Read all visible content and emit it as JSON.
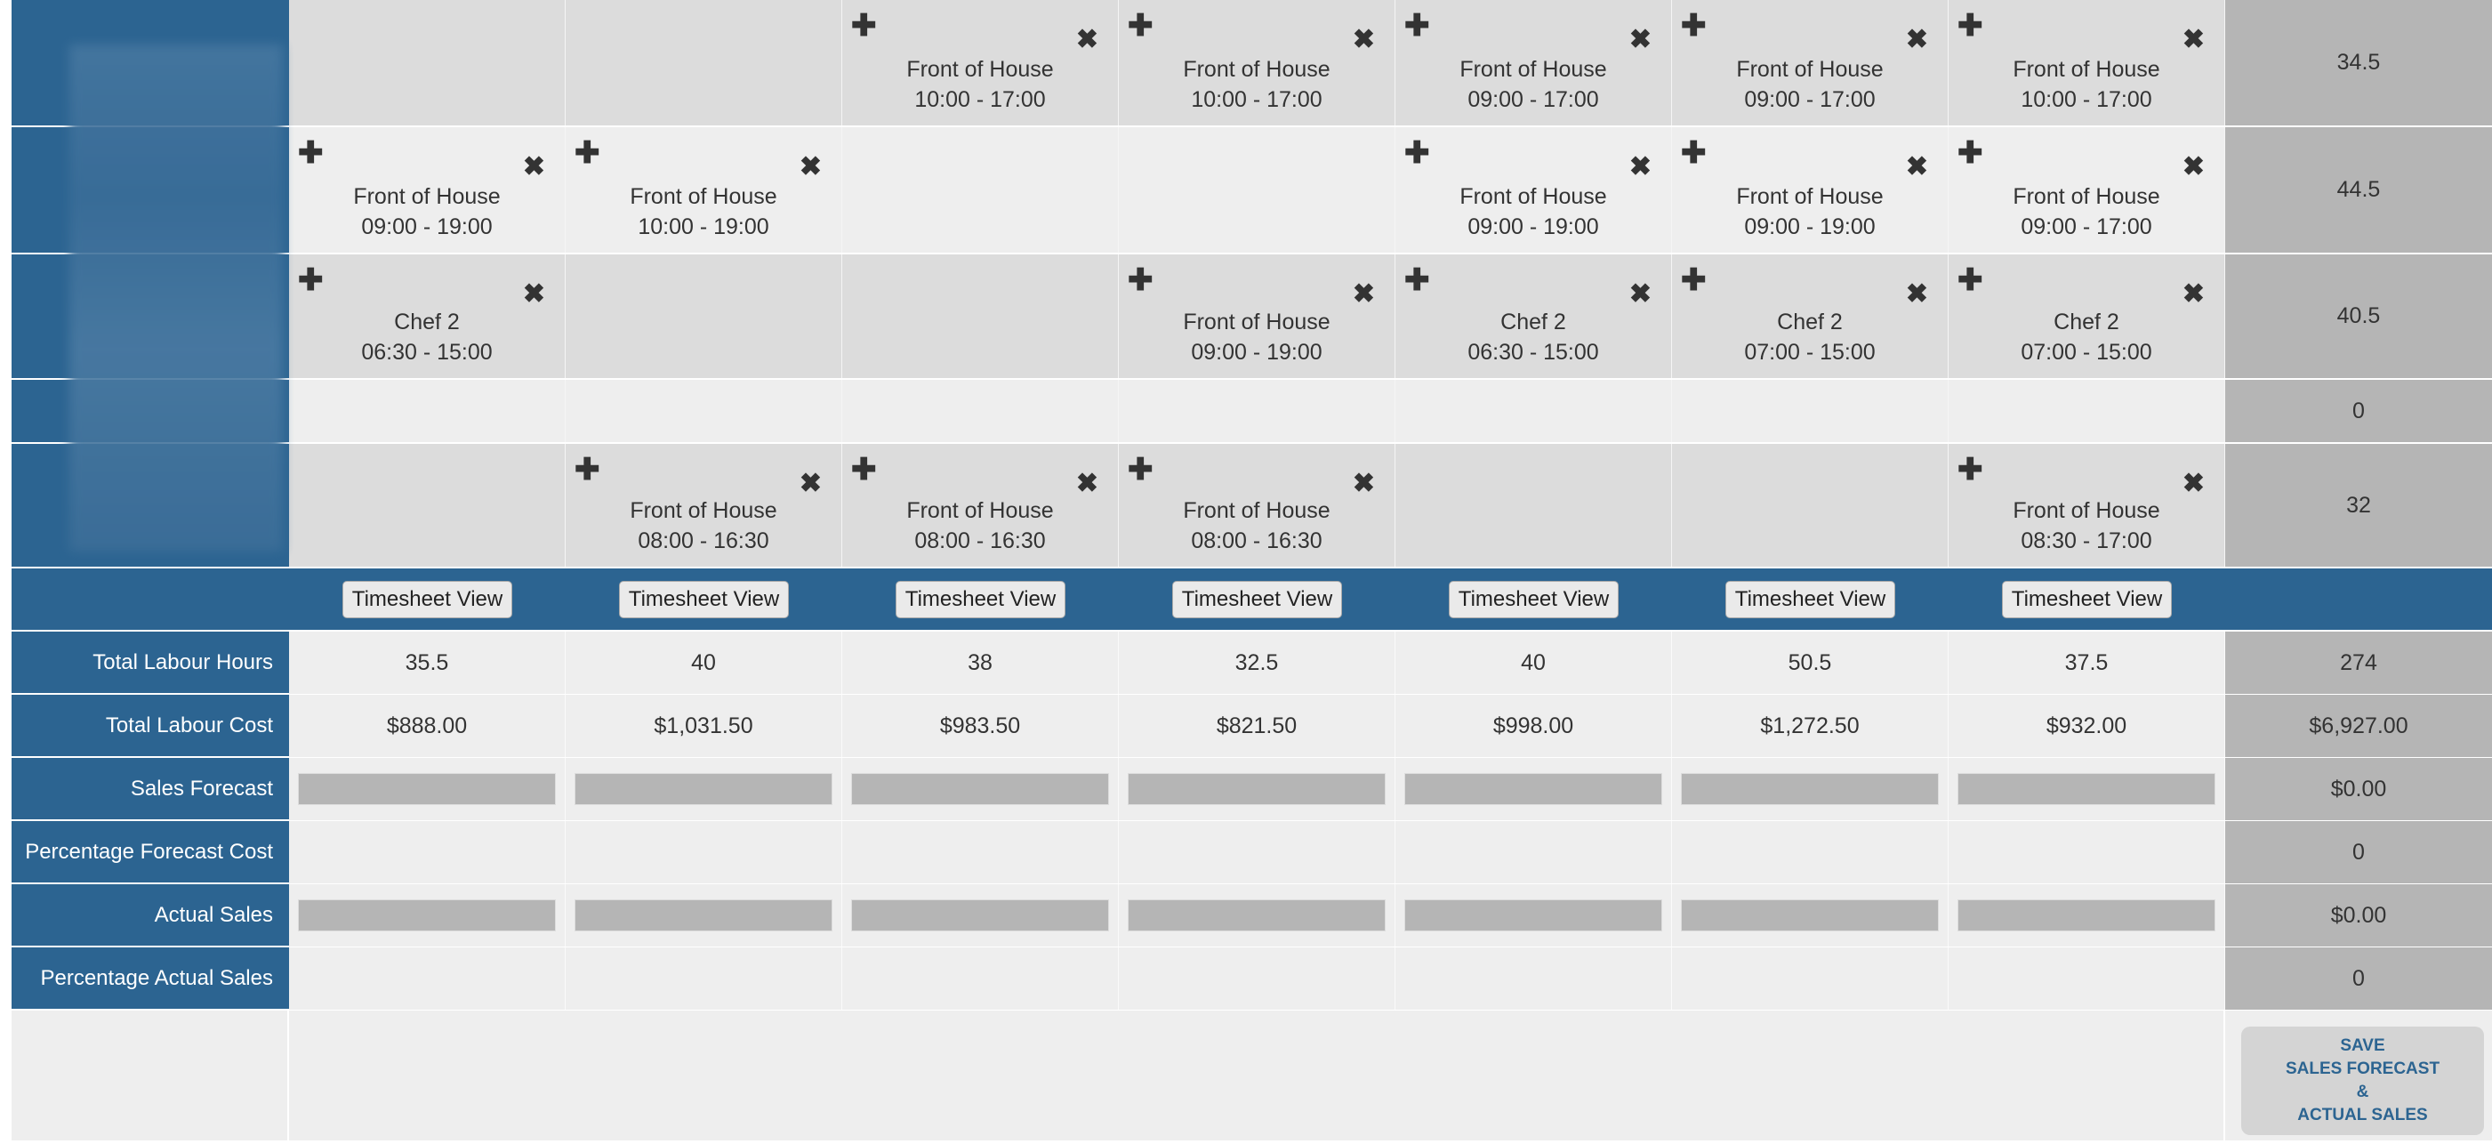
{
  "colors": {
    "primary": "#2c6491",
    "total_column": "#b5b5b5",
    "row_dark": "#dcdcdc",
    "row_light": "#eeeeee"
  },
  "icons": {
    "add": "plus-icon",
    "remove": "close-icon"
  },
  "staff_rows": [
    {
      "shifts": [
        null,
        null,
        {
          "role": "Front of House",
          "time": "10:00 - 17:00"
        },
        {
          "role": "Front of House",
          "time": "10:00 - 17:00"
        },
        {
          "role": "Front of House",
          "time": "09:00 - 17:00"
        },
        {
          "role": "Front of House",
          "time": "09:00 - 17:00"
        },
        {
          "role": "Front of House",
          "time": "10:00 - 17:00"
        }
      ],
      "total": "34.5"
    },
    {
      "shifts": [
        {
          "role": "Front of House",
          "time": "09:00 - 19:00"
        },
        {
          "role": "Front of House",
          "time": "10:00 - 19:00"
        },
        null,
        null,
        {
          "role": "Front of House",
          "time": "09:00 - 19:00"
        },
        {
          "role": "Front of House",
          "time": "09:00 - 19:00"
        },
        {
          "role": "Front of House",
          "time": "09:00 - 17:00"
        }
      ],
      "total": "44.5"
    },
    {
      "shifts": [
        {
          "role": "Chef 2",
          "time": "06:30 - 15:00"
        },
        null,
        null,
        {
          "role": "Front of House",
          "time": "09:00 - 19:00"
        },
        {
          "role": "Chef 2",
          "time": "06:30 - 15:00"
        },
        {
          "role": "Chef 2",
          "time": "07:00 - 15:00"
        },
        {
          "role": "Chef 2",
          "time": "07:00 - 15:00"
        }
      ],
      "total": "40.5"
    },
    {
      "shifts": [
        null,
        null,
        null,
        null,
        null,
        null,
        null
      ],
      "total": "0"
    },
    {
      "shifts": [
        null,
        {
          "role": "Front of House",
          "time": "08:00 - 16:30"
        },
        {
          "role": "Front of House",
          "time": "08:00 - 16:30"
        },
        {
          "role": "Front of House",
          "time": "08:00 - 16:30"
        },
        null,
        null,
        {
          "role": "Front of House",
          "time": "08:30 - 17:00"
        }
      ],
      "total": "32"
    }
  ],
  "timesheet_label": "Timesheet View",
  "summary_rows": [
    {
      "label": "Total Labour Hours",
      "values": [
        "35.5",
        "40",
        "38",
        "32.5",
        "40",
        "50.5",
        "37.5"
      ],
      "total": "274"
    },
    {
      "label": "Total Labour Cost",
      "values": [
        "$888.00",
        "$1,031.50",
        "$983.50",
        "$821.50",
        "$998.00",
        "$1,272.50",
        "$932.00"
      ],
      "total": "$6,927.00"
    },
    {
      "label": "Sales Forecast",
      "input": true,
      "values": [
        "",
        "",
        "",
        "",
        "",
        "",
        ""
      ],
      "total": "$0.00"
    },
    {
      "label": "Percentage Forecast Cost",
      "values": [
        "",
        "",
        "",
        "",
        "",
        "",
        ""
      ],
      "total": "0"
    },
    {
      "label": "Actual Sales",
      "input": true,
      "values": [
        "",
        "",
        "",
        "",
        "",
        "",
        ""
      ],
      "total": "$0.00"
    },
    {
      "label": "Percentage Actual Sales",
      "values": [
        "",
        "",
        "",
        "",
        "",
        "",
        ""
      ],
      "total": "0"
    }
  ],
  "save_button": {
    "line1": "SAVE",
    "line2": "SALES FORECAST",
    "line3": "&",
    "line4": "ACTUAL SALES"
  }
}
